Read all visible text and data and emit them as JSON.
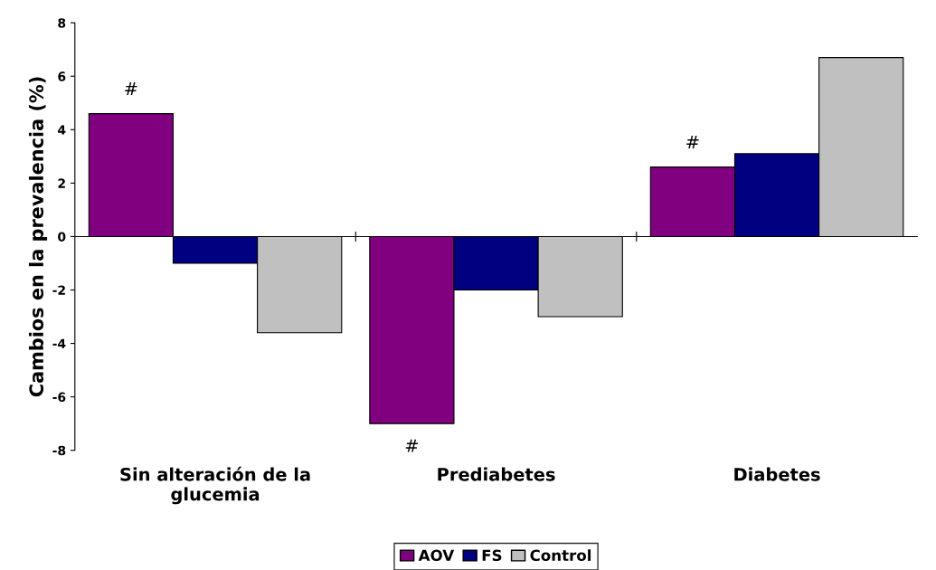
{
  "chart_data": {
    "type": "bar",
    "ylabel": "Cambios en la prevalencia (%)",
    "categories": [
      "Sin alteración de la\nglucemia",
      "Prediabetes",
      "Diabetes"
    ],
    "series": [
      {
        "name": "AOV",
        "color": "#800080",
        "values": [
          4.6,
          -7.0,
          2.6
        ]
      },
      {
        "name": "FS",
        "color": "#000080",
        "values": [
          -1.0,
          -2.0,
          3.1
        ]
      },
      {
        "name": "Control",
        "color": "#c0c0c0",
        "values": [
          -3.6,
          -3.0,
          6.7
        ]
      }
    ],
    "ylim": [
      -8,
      8
    ],
    "yticks": [
      -8,
      -6,
      -4,
      -2,
      0,
      2,
      4,
      6,
      8
    ],
    "legend": "bottom",
    "annotations": [
      "#",
      "#",
      "#"
    ]
  }
}
